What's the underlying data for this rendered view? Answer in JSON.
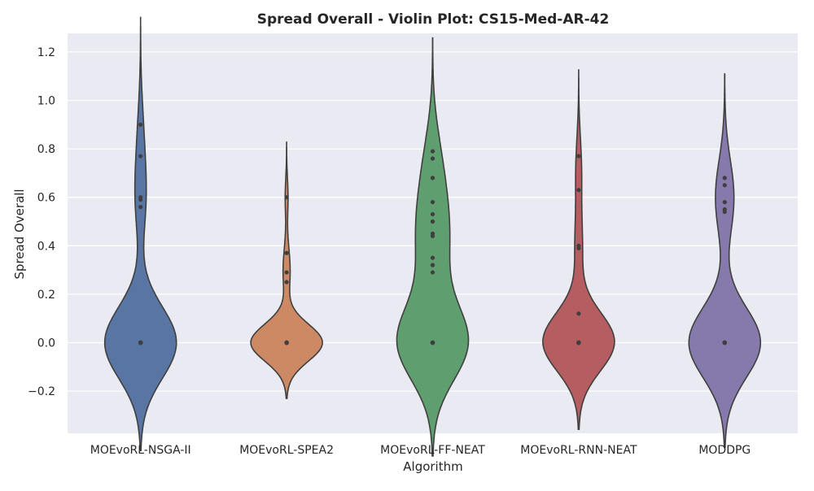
{
  "chart_data": {
    "type": "violin",
    "title": "Spread Overall - Violin Plot: CS15-Med-AR-42",
    "xlabel": "Algorithm",
    "ylabel": "Spread Overall",
    "ylim": [
      -0.34,
      1.28
    ],
    "yticks": [
      -0.2,
      0.0,
      0.2,
      0.4,
      0.6,
      0.8,
      1.0,
      1.2
    ],
    "ytick_labels": [
      "−0.2",
      "0.0",
      "0.2",
      "0.4",
      "0.6",
      "0.8",
      "1.0",
      "1.2"
    ],
    "grid": true,
    "background": "#eaeaf2",
    "categories": [
      "MOEvoRL-NSGA-II",
      "MOEvoRL-SPEA2",
      "MOEvoRL-FF-NEAT",
      "MOEvoRL-RNN-NEAT",
      "MODDPG"
    ],
    "series": [
      {
        "color": "#5875a4",
        "points": [
          0.0,
          0.0,
          0.0,
          0.0,
          0.0,
          0.0,
          0.0,
          0.0,
          0.0,
          0.0,
          0.0,
          0.0,
          0.0,
          0.0,
          0.0,
          0.0,
          0.0,
          0.0,
          0.0,
          0.0,
          0.0,
          0.0,
          0.0,
          0.56,
          0.59,
          0.6,
          0.77,
          0.9
        ]
      },
      {
        "color": "#cc8963",
        "points": [
          0.0,
          0.0,
          0.0,
          0.0,
          0.0,
          0.0,
          0.0,
          0.0,
          0.0,
          0.0,
          0.0,
          0.0,
          0.0,
          0.0,
          0.0,
          0.0,
          0.0,
          0.0,
          0.0,
          0.0,
          0.0,
          0.0,
          0.0,
          0.0,
          0.0,
          0.25,
          0.29,
          0.37,
          0.6
        ]
      },
      {
        "color": "#5f9e6e",
        "points": [
          0.0,
          0.0,
          0.0,
          0.0,
          0.0,
          0.0,
          0.0,
          0.0,
          0.0,
          0.0,
          0.0,
          0.0,
          0.0,
          0.0,
          0.0,
          0.29,
          0.32,
          0.35,
          0.44,
          0.45,
          0.5,
          0.53,
          0.58,
          0.68,
          0.76,
          0.79
        ]
      },
      {
        "color": "#b55d60",
        "points": [
          0.0,
          0.0,
          0.0,
          0.0,
          0.0,
          0.0,
          0.0,
          0.0,
          0.0,
          0.0,
          0.0,
          0.0,
          0.0,
          0.0,
          0.0,
          0.0,
          0.0,
          0.0,
          0.0,
          0.0,
          0.12,
          0.39,
          0.4,
          0.63,
          0.77
        ]
      },
      {
        "color": "#857aab",
        "points": [
          0.0,
          0.0,
          0.0,
          0.0,
          0.0,
          0.0,
          0.0,
          0.0,
          0.0,
          0.0,
          0.0,
          0.0,
          0.0,
          0.0,
          0.0,
          0.0,
          0.0,
          0.0,
          0.54,
          0.55,
          0.58,
          0.65,
          0.68
        ]
      }
    ]
  }
}
